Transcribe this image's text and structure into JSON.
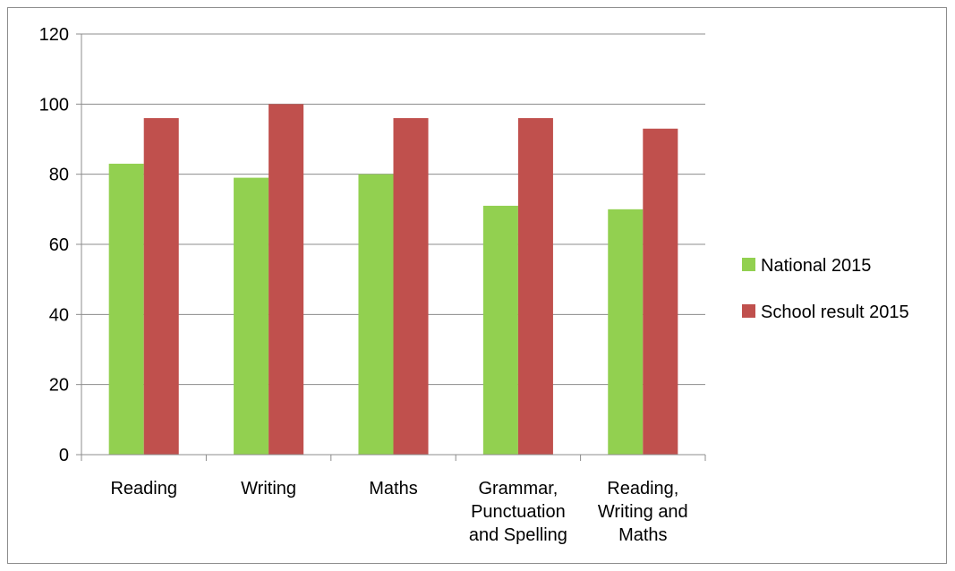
{
  "chart_data": {
    "type": "bar",
    "categories": [
      [
        "Reading"
      ],
      [
        "Writing"
      ],
      [
        "Maths"
      ],
      [
        "Grammar,",
        "Punctuation",
        "and Spelling"
      ],
      [
        "Reading,",
        "Writing and",
        "Maths"
      ]
    ],
    "series": [
      {
        "name": "National 2015",
        "color": "#92d050",
        "values": [
          83,
          79,
          80,
          71,
          70
        ]
      },
      {
        "name": "School result 2015",
        "color": "#c0504d",
        "values": [
          96,
          100,
          96,
          96,
          93
        ]
      }
    ],
    "ylim": [
      0,
      120
    ],
    "yticks": [
      "0",
      "20",
      "40",
      "60",
      "80",
      "100",
      "120"
    ],
    "grid": true,
    "legend": "right",
    "title": "",
    "xlabel": "",
    "ylabel": ""
  }
}
